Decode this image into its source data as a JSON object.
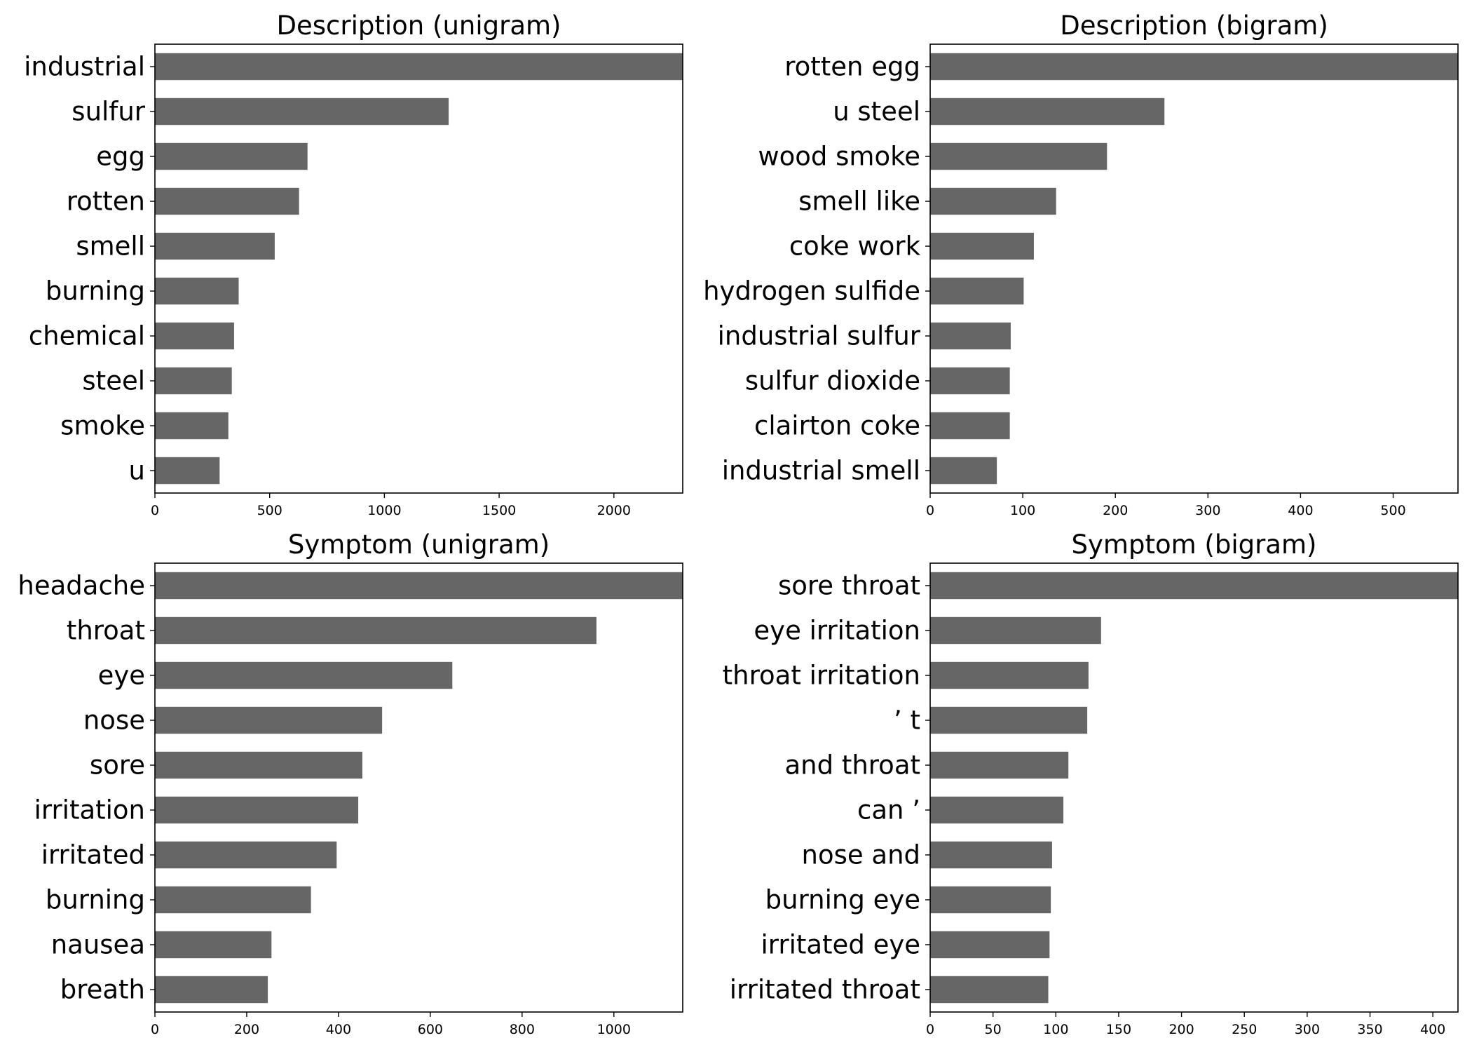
{
  "chart_data": [
    {
      "type": "bar",
      "orientation": "horizontal",
      "title": "Description (unigram)",
      "categories": [
        "industrial",
        "sulfur",
        "egg",
        "rotten",
        "smell",
        "burning",
        "chemical",
        "steel",
        "smoke",
        "u"
      ],
      "values": [
        2350,
        1280,
        665,
        628,
        522,
        365,
        345,
        335,
        320,
        282
      ],
      "xlim": [
        0,
        2300
      ],
      "xticks": [
        0,
        500,
        1000,
        1500,
        2000
      ],
      "xlabel": "",
      "ylabel": "",
      "color": "#666666"
    },
    {
      "type": "bar",
      "orientation": "horizontal",
      "title": "Description (bigram)",
      "categories": [
        "rotten egg",
        "u steel",
        "wood smoke",
        "smell like",
        "coke work",
        "hydrogen sulfide",
        "industrial sulfur",
        "sulfur dioxide",
        "clairton coke",
        "industrial smell"
      ],
      "values": [
        590,
        253,
        191,
        136,
        112,
        101,
        87,
        86,
        86,
        72
      ],
      "xlim": [
        0,
        570
      ],
      "xticks": [
        0,
        100,
        200,
        300,
        400,
        500
      ],
      "xlabel": "",
      "ylabel": "",
      "color": "#666666"
    },
    {
      "type": "bar",
      "orientation": "horizontal",
      "title": "Symptom (unigram)",
      "categories": [
        "headache",
        "throat",
        "eye",
        "nose",
        "sore",
        "irritation",
        "irritated",
        "burning",
        "nausea",
        "breath"
      ],
      "values": [
        1180,
        962,
        648,
        495,
        452,
        443,
        396,
        340,
        254,
        246
      ],
      "xlim": [
        0,
        1150
      ],
      "xticks": [
        0,
        200,
        400,
        600,
        800,
        1000
      ],
      "xlabel": "",
      "ylabel": "",
      "color": "#666666"
    },
    {
      "type": "bar",
      "orientation": "horizontal",
      "title": "Symptom (bigram)",
      "categories": [
        "sore throat",
        "eye irritation",
        "throat irritation",
        "’ t",
        "and throat",
        "can ’",
        "nose and",
        "burning eye",
        "irritated eye",
        "irritated throat"
      ],
      "values": [
        440,
        136,
        126,
        125,
        110,
        106,
        97,
        96,
        95,
        94
      ],
      "xlim": [
        0,
        420
      ],
      "xticks": [
        0,
        50,
        100,
        150,
        200,
        250,
        300,
        350,
        400
      ],
      "xlabel": "",
      "ylabel": "",
      "color": "#666666"
    }
  ]
}
